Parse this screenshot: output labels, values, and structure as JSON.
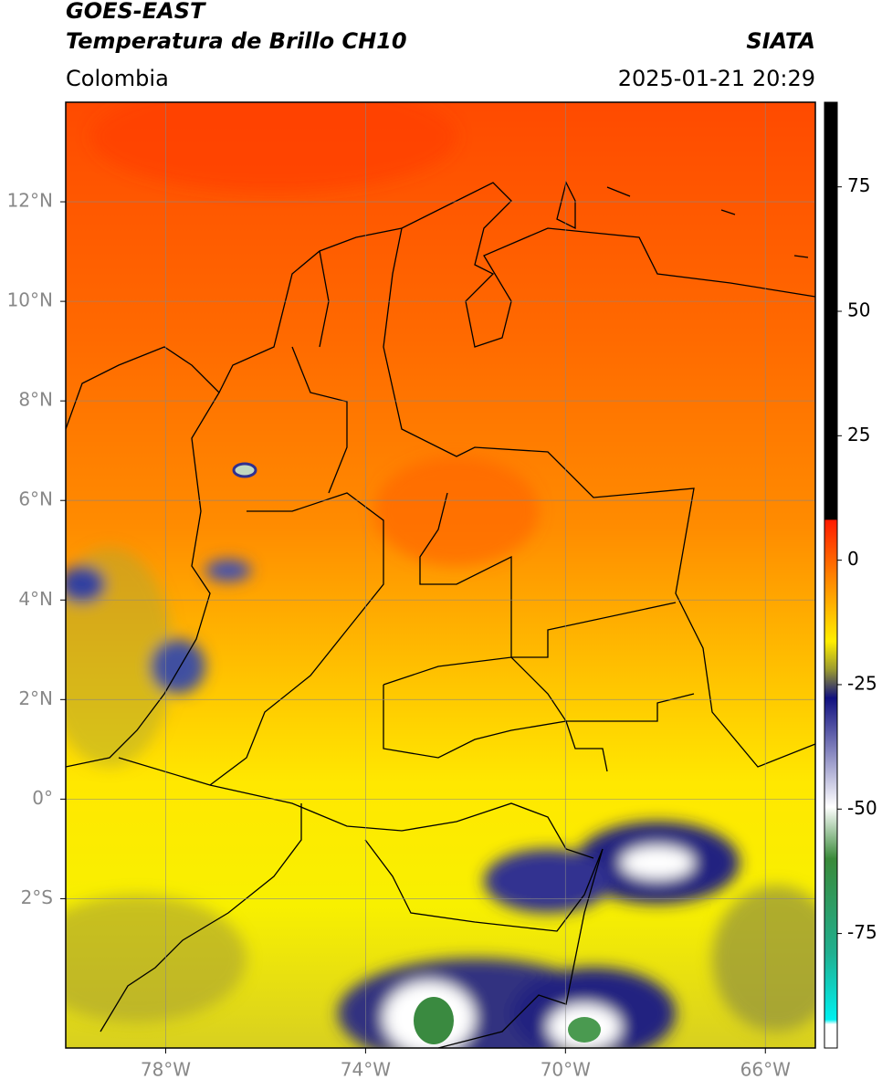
{
  "header": {
    "title": "GOES-EAST",
    "subtitle": "Temperatura de Brillo CH10",
    "region": "Colombia",
    "source": "SIATA",
    "datetime": "2025-01-21 20:29"
  },
  "map": {
    "xlim": [
      -80,
      -65
    ],
    "ylim": [
      -5,
      14
    ],
    "xticks": [
      {
        "value": -78,
        "label": "78°W"
      },
      {
        "value": -74,
        "label": "74°W"
      },
      {
        "value": -70,
        "label": "70°W"
      },
      {
        "value": -66,
        "label": "66°W"
      }
    ],
    "yticks": [
      {
        "value": 12,
        "label": "12°N"
      },
      {
        "value": 10,
        "label": "10°N"
      },
      {
        "value": 8,
        "label": "8°N"
      },
      {
        "value": 6,
        "label": "6°N"
      },
      {
        "value": 4,
        "label": "4°N"
      },
      {
        "value": 2,
        "label": "2°N"
      },
      {
        "value": 0,
        "label": "0°"
      },
      {
        "value": -2,
        "label": "2°S"
      }
    ],
    "grid": true
  },
  "colorbar": {
    "lim": [
      -98,
      92
    ],
    "ticks": [
      75,
      50,
      25,
      0,
      -25,
      -50,
      -75
    ]
  }
}
